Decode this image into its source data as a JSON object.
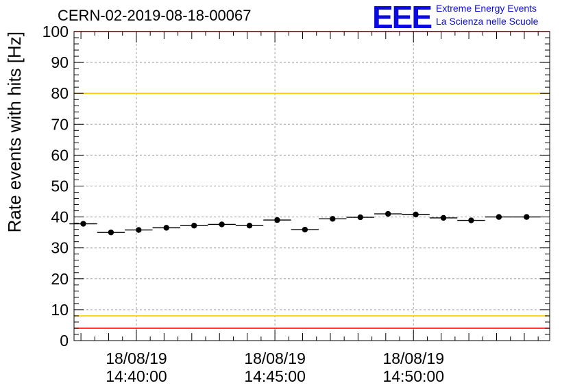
{
  "header": {
    "run_title": "CERN-02-2019-08-18-00067",
    "logo_mark": "EEE",
    "logo_line1": "Extreme Energy Events",
    "logo_line2": "La Scienza nelle Scuole"
  },
  "chart_data": {
    "type": "scatter",
    "title": "CERN-02-2019-08-18-00067",
    "xlabel": "",
    "ylabel": "Rate events with hits [Hz]",
    "ylim": [
      0,
      100
    ],
    "yticks": [
      0,
      10,
      20,
      30,
      40,
      50,
      60,
      70,
      80,
      90,
      100
    ],
    "xlim": [
      "18/08/19 14:37:45",
      "18/08/19 14:54:55"
    ],
    "xticks": [
      {
        "date": "18/08/19",
        "time": "14:40:00"
      },
      {
        "date": "18/08/19",
        "time": "14:45:00"
      },
      {
        "date": "18/08/19",
        "time": "14:50:00"
      }
    ],
    "grid": true,
    "bin_width_seconds": 60,
    "points": [
      {
        "x": "14:38:05",
        "y": 37.8
      },
      {
        "x": "14:39:05",
        "y": 35.0
      },
      {
        "x": "14:40:05",
        "y": 35.8
      },
      {
        "x": "14:41:05",
        "y": 36.5
      },
      {
        "x": "14:42:05",
        "y": 37.2
      },
      {
        "x": "14:43:05",
        "y": 37.6
      },
      {
        "x": "14:44:05",
        "y": 37.2
      },
      {
        "x": "14:45:05",
        "y": 39.0
      },
      {
        "x": "14:46:05",
        "y": 35.9
      },
      {
        "x": "14:47:05",
        "y": 39.4
      },
      {
        "x": "14:48:05",
        "y": 39.9
      },
      {
        "x": "14:49:05",
        "y": 41.0
      },
      {
        "x": "14:50:05",
        "y": 40.8
      },
      {
        "x": "14:51:05",
        "y": 39.7
      },
      {
        "x": "14:52:05",
        "y": 38.9
      },
      {
        "x": "14:53:05",
        "y": 40.0
      },
      {
        "x": "14:54:05",
        "y": 40.0
      }
    ],
    "reference_lines": [
      {
        "y": 100,
        "color": "#ff0000"
      },
      {
        "y": 80,
        "color": "#ffcc00"
      },
      {
        "y": 8,
        "color": "#ffcc00"
      },
      {
        "y": 4,
        "color": "#ff0000"
      }
    ]
  }
}
